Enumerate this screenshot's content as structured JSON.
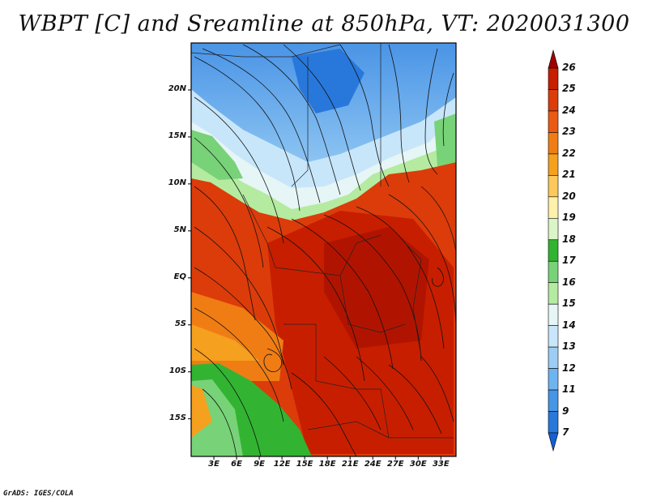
{
  "title": "WBPT [C] and Sreamline at 850hPa, VT: 2020031300",
  "credit": "GrADS: IGES/COLA",
  "lat_labels": [
    "20N",
    "15N",
    "10N",
    "5N",
    "EQ",
    "5S",
    "10S",
    "15S"
  ],
  "lat_values": [
    20,
    15,
    10,
    5,
    0,
    -5,
    -10,
    -15
  ],
  "lon_labels": [
    "3E",
    "6E",
    "9E",
    "12E",
    "15E",
    "18E",
    "21E",
    "24E",
    "27E",
    "30E",
    "33E"
  ],
  "lon_values": [
    3,
    6,
    9,
    12,
    15,
    18,
    21,
    24,
    27,
    30,
    33
  ],
  "map_extent": {
    "lon": [
      0,
      35
    ],
    "lat": [
      -19,
      25
    ]
  },
  "colorbar": {
    "labels": [
      "26",
      "25",
      "24",
      "23",
      "22",
      "21",
      "20",
      "19",
      "18",
      "17",
      "16",
      "15",
      "14",
      "13",
      "12",
      "11",
      "9",
      "7"
    ],
    "colors": [
      "#a00000",
      "#c81e00",
      "#dc3c0a",
      "#eb5a14",
      "#f07d14",
      "#f5a01e",
      "#ffc85a",
      "#fff0aa",
      "#dcf5c8",
      "#32b432",
      "#78d278",
      "#b4eba0",
      "#e6f5f5",
      "#c8e6fa",
      "#9ccdf5",
      "#6eb4f0",
      "#4696e6",
      "#2878dc",
      "#1460d2"
    ]
  }
}
